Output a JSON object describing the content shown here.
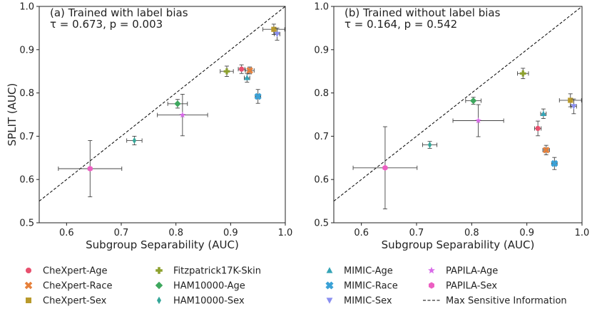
{
  "chart_data": {
    "type": "scatter",
    "ylabel": "SPLIT (AUC)",
    "xlabel": "Subgroup Separability (AUC)",
    "xlim": [
      0.55,
      1.0
    ],
    "ylim": [
      0.5,
      1.0
    ],
    "xticks": [
      "0.6",
      "0.7",
      "0.8",
      "0.9",
      "1.0"
    ],
    "yticks": [
      "0.5",
      "0.6",
      "0.7",
      "0.8",
      "0.9",
      "1.0"
    ],
    "panels": [
      {
        "title": "(a) Trained with label bias",
        "stats": "τ = 0.673, p = 0.003",
        "points": [
          {
            "series": "CheXpert-Age",
            "x": 0.92,
            "y": 0.855,
            "xerr": 0.006,
            "yerr": 0.01
          },
          {
            "series": "CheXpert-Race",
            "x": 0.935,
            "y": 0.852,
            "xerr": 0.008,
            "yerr": 0.008
          },
          {
            "series": "CheXpert-Sex",
            "x": 0.979,
            "y": 0.947,
            "xerr": 0.02,
            "yerr": 0.012
          },
          {
            "series": "Fitzpatrick17K-Skin",
            "x": 0.893,
            "y": 0.85,
            "xerr": 0.012,
            "yerr": 0.012
          },
          {
            "series": "HAM10000-Age",
            "x": 0.803,
            "y": 0.775,
            "xerr": 0.018,
            "yerr": 0.01
          },
          {
            "series": "HAM10000-Sex",
            "x": 0.724,
            "y": 0.69,
            "xerr": 0.014,
            "yerr": 0.01
          },
          {
            "series": "MIMIC-Age",
            "x": 0.93,
            "y": 0.835,
            "xerr": 0.005,
            "yerr": 0.01
          },
          {
            "series": "MIMIC-Race",
            "x": 0.95,
            "y": 0.792,
            "xerr": 0.005,
            "yerr": 0.016
          },
          {
            "series": "MIMIC-Sex",
            "x": 0.985,
            "y": 0.936,
            "xerr": 0.005,
            "yerr": 0.014
          },
          {
            "series": "PAPILA-Age",
            "x": 0.812,
            "y": 0.749,
            "xerr": 0.046,
            "yerr": 0.048
          },
          {
            "series": "PAPILA-Sex",
            "x": 0.643,
            "y": 0.625,
            "xerr": 0.058,
            "yerr": 0.065
          }
        ]
      },
      {
        "title": "(b) Trained without label bias",
        "stats": "τ = 0.164, p = 0.542",
        "points": [
          {
            "series": "CheXpert-Age",
            "x": 0.92,
            "y": 0.718,
            "xerr": 0.006,
            "yerr": 0.017
          },
          {
            "series": "CheXpert-Race",
            "x": 0.935,
            "y": 0.668,
            "xerr": 0.006,
            "yerr": 0.011
          },
          {
            "series": "CheXpert-Sex",
            "x": 0.979,
            "y": 0.783,
            "xerr": 0.02,
            "yerr": 0.015
          },
          {
            "series": "Fitzpatrick17K-Skin",
            "x": 0.893,
            "y": 0.845,
            "xerr": 0.01,
            "yerr": 0.012
          },
          {
            "series": "HAM10000-Age",
            "x": 0.803,
            "y": 0.782,
            "xerr": 0.014,
            "yerr": 0.008
          },
          {
            "series": "HAM10000-Sex",
            "x": 0.724,
            "y": 0.68,
            "xerr": 0.013,
            "yerr": 0.008
          },
          {
            "series": "MIMIC-Age",
            "x": 0.93,
            "y": 0.752,
            "xerr": 0.005,
            "yerr": 0.011
          },
          {
            "series": "MIMIC-Race",
            "x": 0.95,
            "y": 0.637,
            "xerr": 0.005,
            "yerr": 0.014
          },
          {
            "series": "MIMIC-Sex",
            "x": 0.985,
            "y": 0.769,
            "xerr": 0.005,
            "yerr": 0.017
          },
          {
            "series": "PAPILA-Age",
            "x": 0.812,
            "y": 0.736,
            "xerr": 0.046,
            "yerr": 0.037
          },
          {
            "series": "PAPILA-Sex",
            "x": 0.643,
            "y": 0.627,
            "xerr": 0.058,
            "yerr": 0.095
          }
        ]
      }
    ],
    "series": [
      {
        "name": "CheXpert-Age",
        "marker": "circle",
        "color": "#e8506e"
      },
      {
        "name": "CheXpert-Race",
        "marker": "x",
        "color": "#e6803a"
      },
      {
        "name": "CheXpert-Sex",
        "marker": "square",
        "color": "#b99a2c"
      },
      {
        "name": "Fitzpatrick17K-Skin",
        "marker": "plus",
        "color": "#8da12e"
      },
      {
        "name": "HAM10000-Age",
        "marker": "diamond",
        "color": "#3ea75e"
      },
      {
        "name": "HAM10000-Sex",
        "marker": "thin-diamond",
        "color": "#35a698"
      },
      {
        "name": "MIMIC-Age",
        "marker": "triangle-up",
        "color": "#35a4b6"
      },
      {
        "name": "MIMIC-Race",
        "marker": "x-filled",
        "color": "#3aa1d6"
      },
      {
        "name": "MIMIC-Sex",
        "marker": "triangle-down",
        "color": "#8a8ff0"
      },
      {
        "name": "PAPILA-Age",
        "marker": "star",
        "color": "#d86ae8"
      },
      {
        "name": "PAPILA-Sex",
        "marker": "hexagon",
        "color": "#ec5fc2"
      }
    ],
    "reference_line": {
      "label": "Max Sensitive Information",
      "style": "dashed",
      "color": "#000000"
    }
  }
}
